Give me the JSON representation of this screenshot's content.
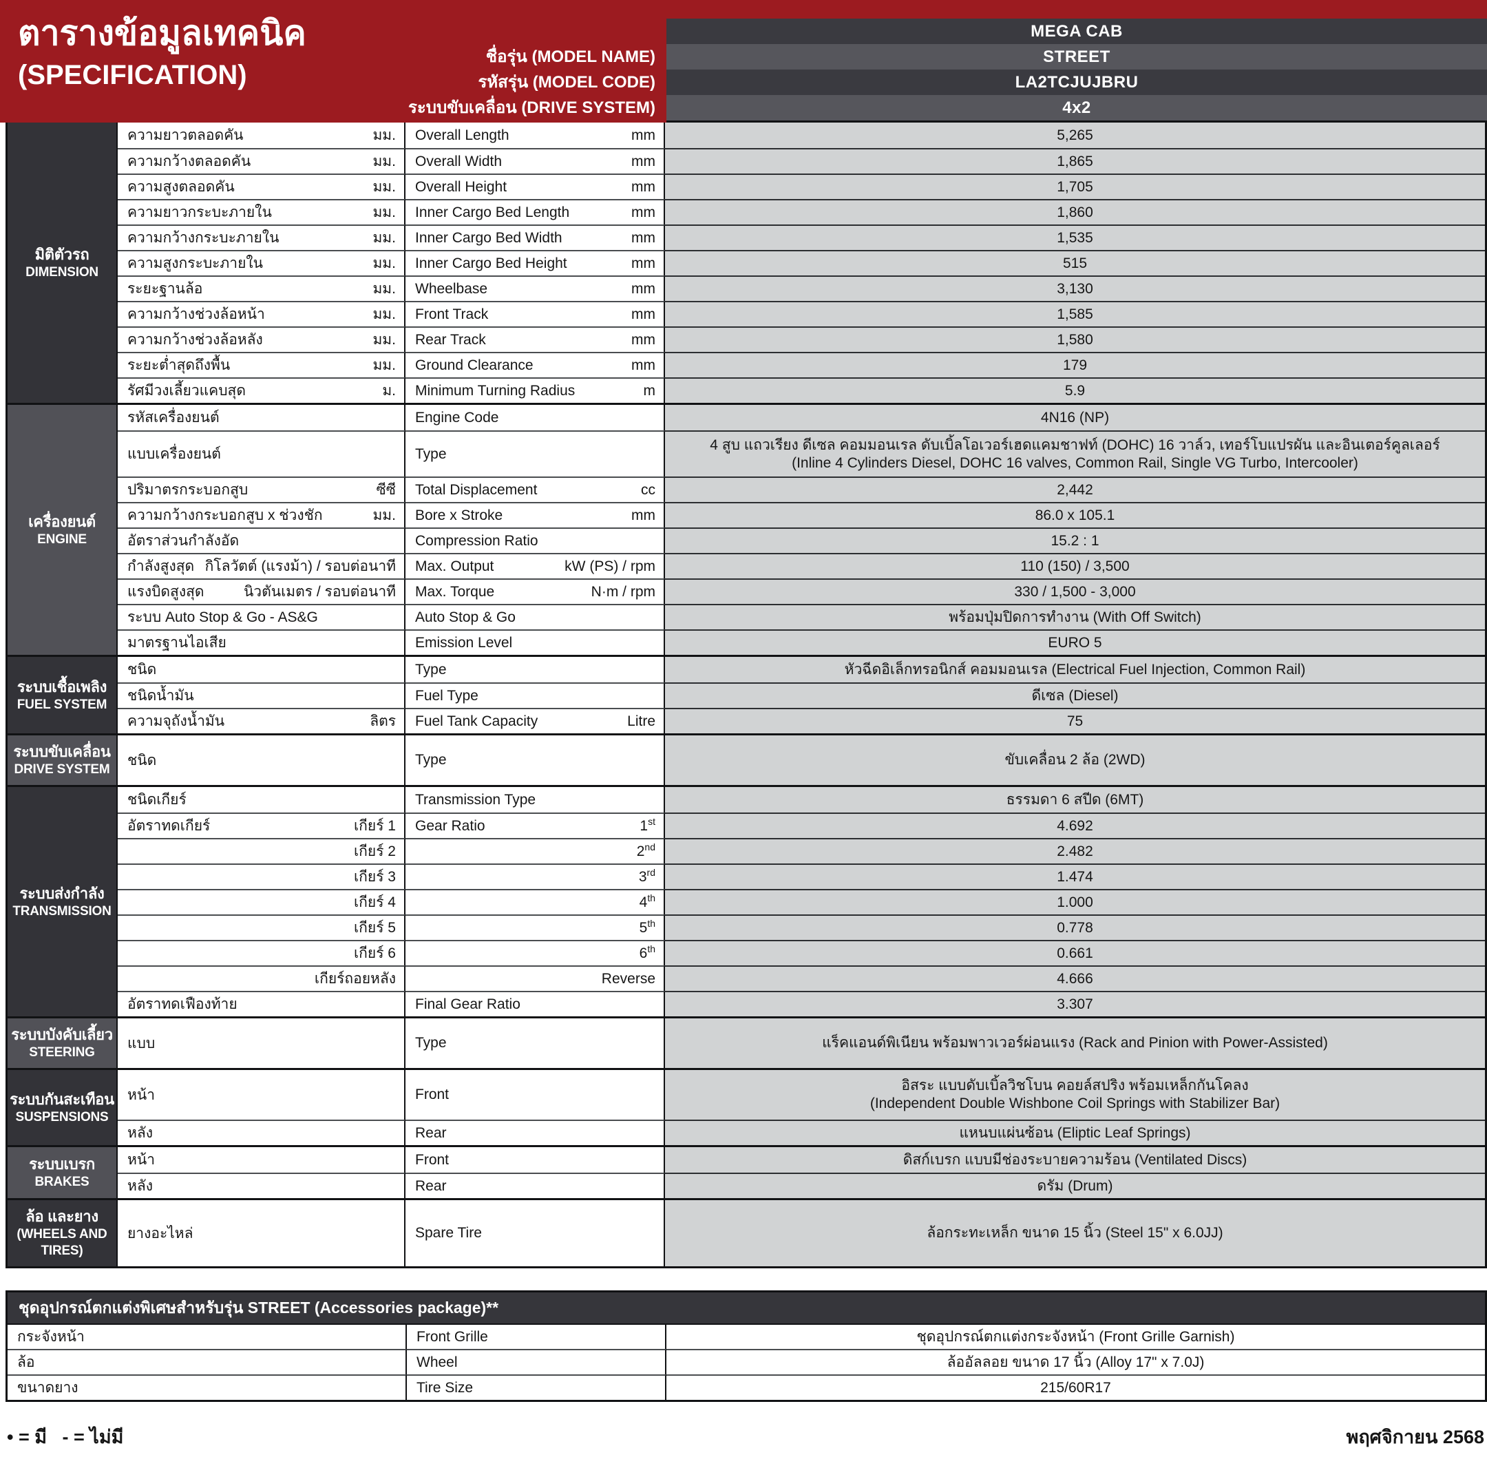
{
  "colors": {
    "red": "#9c1b20",
    "hdr_dark": "#3a3a40",
    "hdr_light": "#56565c",
    "sec_dark": "#333338",
    "sec_light": "#515157",
    "val_bg": "#d1d3d4"
  },
  "header": {
    "title_thai": "ตารางข้อมูลเทคนิค",
    "title_eng": "(SPECIFICATION)",
    "labels": [
      "ชื่อรุ่น (MODEL NAME)",
      "รหัสรุ่น (MODEL CODE)",
      "ระบบขับเคลื่อน (DRIVE SYSTEM)"
    ],
    "values": [
      "MEGA CAB",
      "STREET",
      "LA2TCJUJBRU",
      "4x2"
    ]
  },
  "spec_sections": [
    {
      "id": "dimension",
      "shade": "dark",
      "thai": "มิติตัวรถ",
      "eng": "DIMENSION",
      "rows": [
        {
          "thai": "ความยาวตลอดคัน",
          "thai_unit": "มม.",
          "eng": "Overall Length",
          "eng_unit": "mm",
          "value": "5,265"
        },
        {
          "thai": "ความกว้างตลอดคัน",
          "thai_unit": "มม.",
          "eng": "Overall Width",
          "eng_unit": "mm",
          "value": "1,865"
        },
        {
          "thai": "ความสูงตลอดคัน",
          "thai_unit": "มม.",
          "eng": "Overall Height",
          "eng_unit": "mm",
          "value": "1,705"
        },
        {
          "thai": "ความยาวกระบะภายใน",
          "thai_unit": "มม.",
          "eng": "Inner Cargo Bed Length",
          "eng_unit": "mm",
          "value": "1,860"
        },
        {
          "thai": "ความกว้างกระบะภายใน",
          "thai_unit": "มม.",
          "eng": "Inner Cargo Bed Width",
          "eng_unit": "mm",
          "value": "1,535"
        },
        {
          "thai": "ความสูงกระบะภายใน",
          "thai_unit": "มม.",
          "eng": "Inner Cargo Bed Height",
          "eng_unit": "mm",
          "value": "515"
        },
        {
          "thai": "ระยะฐานล้อ",
          "thai_unit": "มม.",
          "eng": "Wheelbase",
          "eng_unit": "mm",
          "value": "3,130"
        },
        {
          "thai": "ความกว้างช่วงล้อหน้า",
          "thai_unit": "มม.",
          "eng": "Front Track",
          "eng_unit": "mm",
          "value": "1,585"
        },
        {
          "thai": "ความกว้างช่วงล้อหลัง",
          "thai_unit": "มม.",
          "eng": "Rear Track",
          "eng_unit": "mm",
          "value": "1,580"
        },
        {
          "thai": "ระยะต่ำสุดถึงพื้น",
          "thai_unit": "มม.",
          "eng": "Ground Clearance",
          "eng_unit": "mm",
          "value": "179"
        },
        {
          "thai": "รัศมีวงเลี้ยวแคบสุด",
          "thai_unit": "ม.",
          "eng": "Minimum Turning Radius",
          "eng_unit": "m",
          "value": "5.9"
        }
      ]
    },
    {
      "id": "engine",
      "shade": "light",
      "thai": "เครื่องยนต์",
      "eng": "ENGINE",
      "rows": [
        {
          "thai": "รหัสเครื่องยนต์",
          "eng": "Engine Code",
          "value": "4N16 (NP)"
        },
        {
          "thai": "แบบเครื่องยนต์",
          "eng": "Type",
          "value": [
            "4 สูบ แถวเรียง ดีเซล คอมมอนเรล ดับเบิ้ลโอเวอร์เฮดแคมชาฟท์ (DOHC) 16 วาล์ว, เทอร์โบแปรผัน และอินเตอร์คูลเลอร์",
            "(Inline 4 Cylinders Diesel, DOHC 16 valves, Common Rail, Single VG Turbo, Intercooler)"
          ]
        },
        {
          "thai": "ปริมาตรกระบอกสูบ",
          "thai_unit": "ซีซี",
          "eng": "Total Displacement",
          "eng_unit": "cc",
          "value": "2,442"
        },
        {
          "thai": "ความกว้างกระบอกสูบ x ช่วงชัก",
          "thai_unit": "มม.",
          "eng": "Bore x Stroke",
          "eng_unit": "mm",
          "value": "86.0 x 105.1"
        },
        {
          "thai": "อัตราส่วนกำลังอัด",
          "eng": "Compression Ratio",
          "value": "15.2 : 1"
        },
        {
          "thai": "กำลังสูงสุด",
          "thai_unit": "กิโลวัตต์ (แรงม้า) / รอบต่อนาที",
          "eng": "Max. Output",
          "eng_unit": "kW (PS) / rpm",
          "value": "110 (150) / 3,500"
        },
        {
          "thai": "แรงบิดสูงสุด",
          "thai_unit": "นิวตันเมตร / รอบต่อนาที",
          "eng": "Max. Torque",
          "eng_unit": "N·m / rpm",
          "value": "330 / 1,500 - 3,000"
        },
        {
          "thai": "ระบบ Auto Stop & Go - AS&G",
          "eng": "Auto Stop & Go",
          "value": "พร้อมปุ่มปิดการทำงาน (With Off Switch)"
        },
        {
          "thai": "มาตรฐานไอเสีย",
          "eng": "Emission Level",
          "value": "EURO 5"
        }
      ]
    },
    {
      "id": "fuel",
      "shade": "dark",
      "thai": "ระบบเชื้อเพลิง",
      "eng": "FUEL SYSTEM",
      "rows": [
        {
          "thai": "ชนิด",
          "eng": "Type",
          "value": "หัวฉีดอิเล็กทรอนิกส์ คอมมอนเรล (Electrical Fuel Injection, Common Rail)"
        },
        {
          "thai": "ชนิดน้ำมัน",
          "eng": "Fuel Type",
          "value": "ดีเซล (Diesel)"
        },
        {
          "thai": "ความจุถังน้ำมัน",
          "thai_unit": "ลิตร",
          "eng": "Fuel Tank Capacity",
          "eng_unit": "Litre",
          "value": "75"
        }
      ]
    },
    {
      "id": "drive",
      "shade": "light",
      "thai": "ระบบขับเคลื่อน",
      "eng": "DRIVE SYSTEM",
      "rows": [
        {
          "thai": "ชนิด",
          "eng": "Type",
          "value": "ขับเคลื่อน 2 ล้อ (2WD)"
        }
      ]
    },
    {
      "id": "transmission",
      "shade": "dark",
      "thai": "ระบบส่งกำลัง",
      "eng": "TRANSMISSION",
      "rows": [
        {
          "thai": "ชนิดเกียร์",
          "eng": "Transmission Type",
          "value": "ธรรมดา 6 สปีด (6MT)"
        },
        {
          "thai": "อัตราทดเกียร์",
          "thai_unit": "เกียร์ 1",
          "eng": "Gear Ratio",
          "eng_unit": "1",
          "eng_unit_sup": "st",
          "value": "4.692"
        },
        {
          "thai": "",
          "thai_unit": "เกียร์ 2",
          "eng": "",
          "eng_unit": "2",
          "eng_unit_sup": "nd",
          "value": "2.482"
        },
        {
          "thai": "",
          "thai_unit": "เกียร์ 3",
          "eng": "",
          "eng_unit": "3",
          "eng_unit_sup": "rd",
          "value": "1.474"
        },
        {
          "thai": "",
          "thai_unit": "เกียร์ 4",
          "eng": "",
          "eng_unit": "4",
          "eng_unit_sup": "th",
          "value": "1.000"
        },
        {
          "thai": "",
          "thai_unit": "เกียร์ 5",
          "eng": "",
          "eng_unit": "5",
          "eng_unit_sup": "th",
          "value": "0.778"
        },
        {
          "thai": "",
          "thai_unit": "เกียร์ 6",
          "eng": "",
          "eng_unit": "6",
          "eng_unit_sup": "th",
          "value": "0.661"
        },
        {
          "thai": "",
          "thai_unit": "เกียร์ถอยหลัง",
          "eng": "",
          "eng_unit": "Reverse",
          "value": "4.666"
        },
        {
          "thai": "อัตราทดเฟืองท้าย",
          "eng": "Final Gear Ratio",
          "value": "3.307"
        }
      ]
    },
    {
      "id": "steering",
      "shade": "light",
      "thai": "ระบบบังคับเลี้ยว",
      "eng": "STEERING",
      "rows": [
        {
          "thai": "แบบ",
          "eng": "Type",
          "value": "แร็คแอนด์พิเนียน พร้อมพาวเวอร์ผ่อนแรง (Rack and Pinion with Power-Assisted)"
        }
      ]
    },
    {
      "id": "suspensions",
      "shade": "dark",
      "thai": "ระบบกันสะเทือน",
      "eng": "SUSPENSIONS",
      "rows": [
        {
          "thai": "หน้า",
          "eng": "Front",
          "value": [
            "อิสระ แบบดับเบิ้ลวิชโบน คอยล์สปริง พร้อมเหล็กกันโคลง",
            "(Independent Double Wishbone Coil Springs with Stabilizer Bar)"
          ]
        },
        {
          "thai": "หลัง",
          "eng": "Rear",
          "value": "แหนบแผ่นซ้อน (Eliptic Leaf Springs)"
        }
      ]
    },
    {
      "id": "brakes",
      "shade": "light",
      "thai": "ระบบเบรก",
      "eng": "BRAKES",
      "rows": [
        {
          "thai": "หน้า",
          "eng": "Front",
          "value": "ดิสก์เบรก แบบมีช่องระบายความร้อน (Ventilated Discs)"
        },
        {
          "thai": "หลัง",
          "eng": "Rear",
          "value": "ดรัม (Drum)"
        }
      ]
    },
    {
      "id": "wheels",
      "shade": "dark",
      "thai": "ล้อ และยาง",
      "eng": "(WHEELS AND TIRES)",
      "rows": [
        {
          "thai": "ยางอะไหล่",
          "eng": "Spare Tire",
          "value": "ล้อกระทะเหล็ก ขนาด 15 นิ้ว (Steel 15\" x 6.0JJ)"
        }
      ]
    }
  ],
  "accessories": {
    "title": "ชุดอุปกรณ์ตกแต่งพิเศษสำหรับรุ่น STREET (Accessories package)**",
    "rows": [
      {
        "thai": "กระจังหน้า",
        "eng": "Front Grille",
        "value": "ชุดอุปกรณ์ตกแต่งกระจังหน้า (Front Grille Garnish)"
      },
      {
        "thai": "ล้อ",
        "eng": "Wheel",
        "value": "ล้ออัลลอย ขนาด 17 นิ้ว (Alloy 17\" x 7.0J)"
      },
      {
        "thai": "ขนาดยาง",
        "eng": "Tire Size",
        "value": "215/60R17"
      }
    ]
  },
  "footer": {
    "legend": "• = มี   - = ไม่มี",
    "date": "พฤศจิกายน 2568"
  }
}
